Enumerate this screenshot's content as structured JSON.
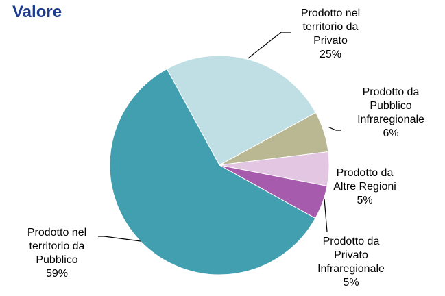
{
  "chart_data": {
    "type": "pie",
    "title": "Valore",
    "categories": [
      "Prodotto nel territorio da Privato",
      "Prodotto da Pubblico Infraregionale",
      "Prodotto da Altre Regioni",
      "Prodotto da Privato Infraregionale",
      "Prodotto nel territorio da Pubblico"
    ],
    "values": [
      25,
      6,
      5,
      5,
      59
    ],
    "value_labels": [
      "25%",
      "6%",
      "5%",
      "5%",
      "59%"
    ],
    "colors": [
      "#bfdfe4",
      "#bab793",
      "#e3c7e2",
      "#a75bad",
      "#419fb0"
    ]
  }
}
